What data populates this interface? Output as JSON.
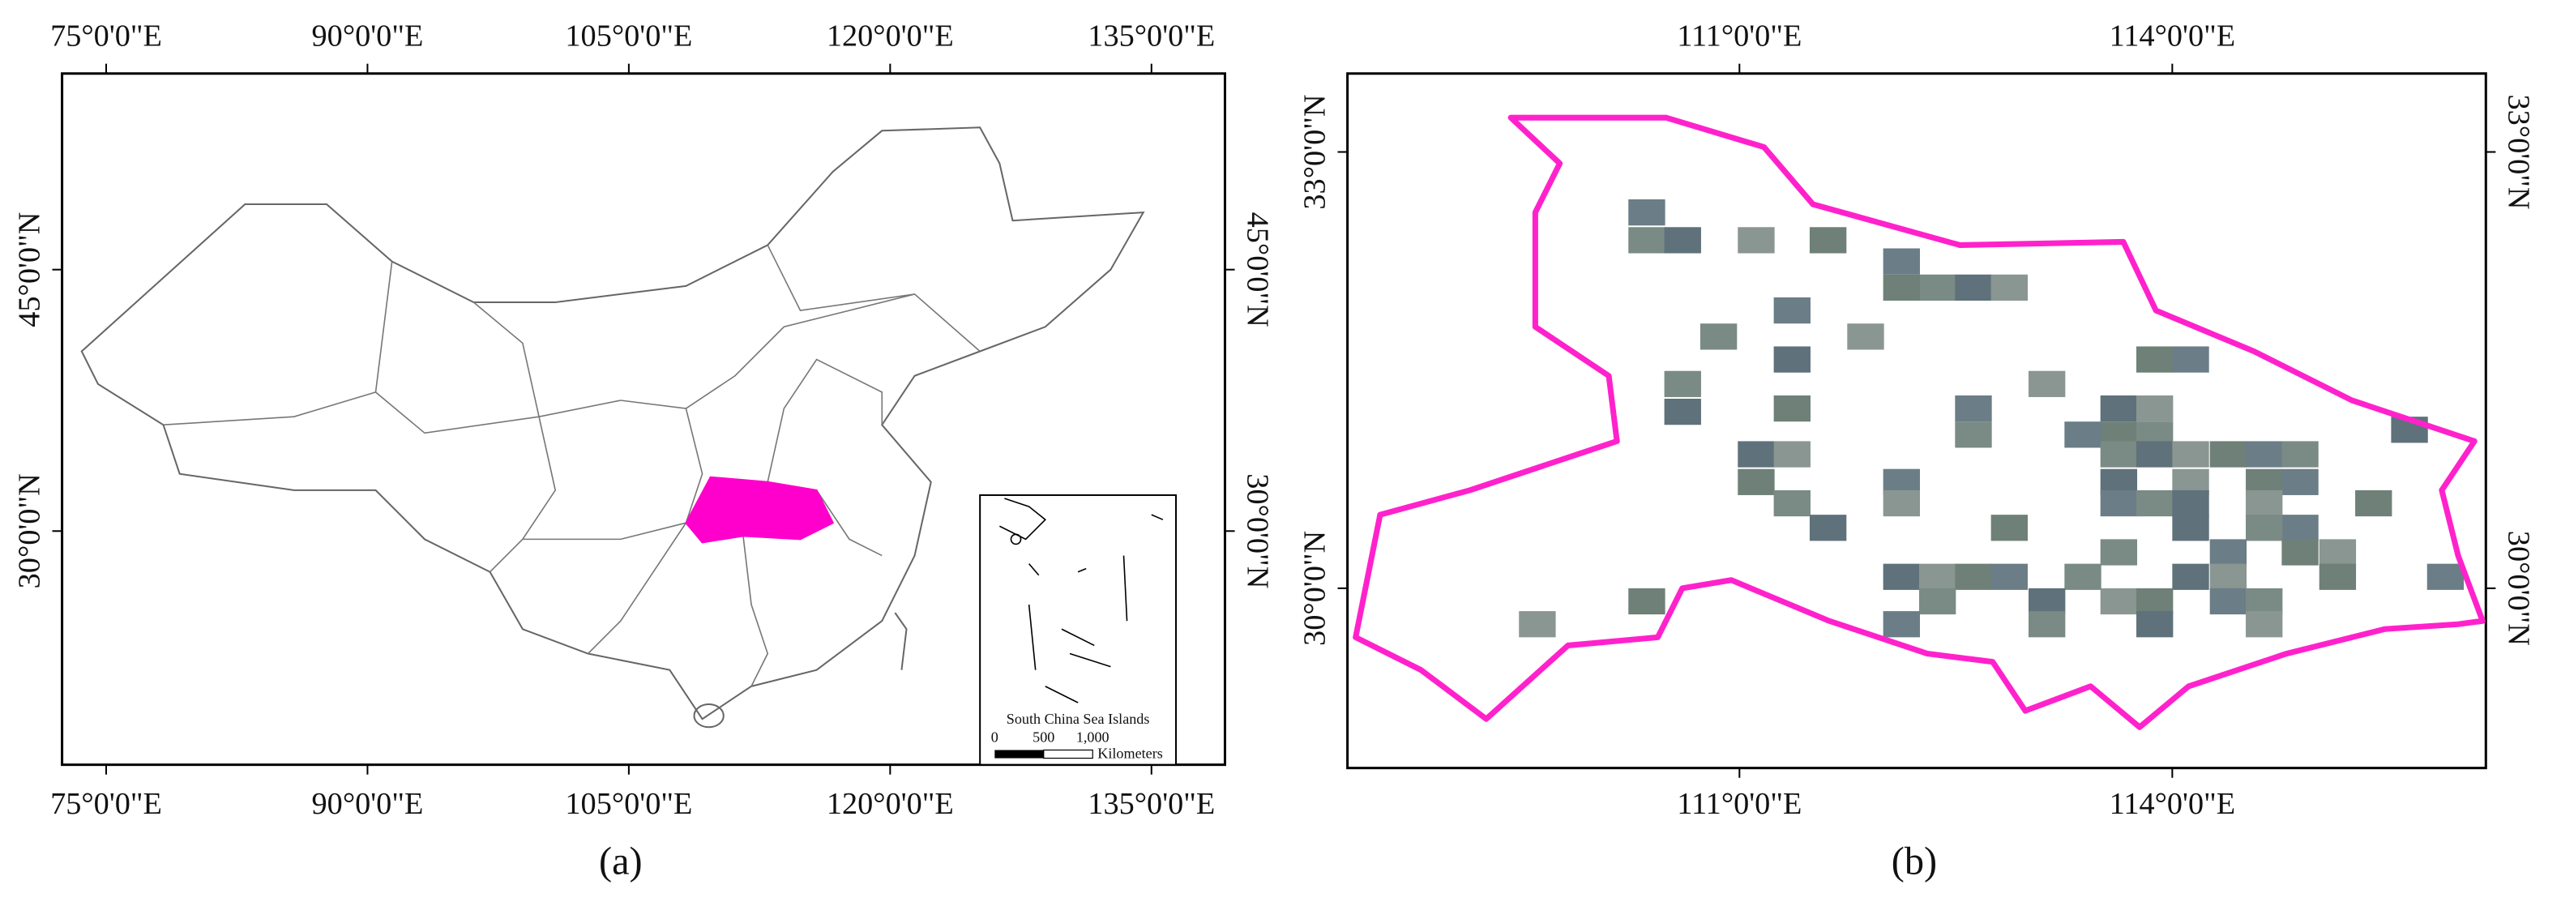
{
  "panel_a": {
    "top_ticks": [
      "75°0'0\"E",
      "90°0'0\"E",
      "105°0'0\"E",
      "120°0'0\"E",
      "135°0'0\"E"
    ],
    "bottom_ticks": [
      "75°0'0\"E",
      "90°0'0\"E",
      "105°0'0\"E",
      "120°0'0\"E",
      "135°0'0\"E"
    ],
    "left_ticks": [
      "45°0'0\"N",
      "30°0'0\"N"
    ],
    "right_ticks": [
      "45°0'0\"N",
      "30°0'0\"N"
    ],
    "inset": {
      "title": "South China Sea Islands",
      "scale_labels": [
        "0",
        "500",
        "1,000"
      ],
      "unit": "Kilometers"
    },
    "caption": "(a)"
  },
  "panel_b": {
    "top_ticks": [
      "111°0'0\"E",
      "114°0'0\"E"
    ],
    "bottom_ticks": [
      "111°0'0\"E",
      "114°0'0\"E"
    ],
    "left_ticks": [
      "33°0'0\"N",
      "30°0'0\"N"
    ],
    "right_ticks": [
      "33°0'0\"N",
      "30°0'0\"N"
    ],
    "caption": "(b)"
  }
}
